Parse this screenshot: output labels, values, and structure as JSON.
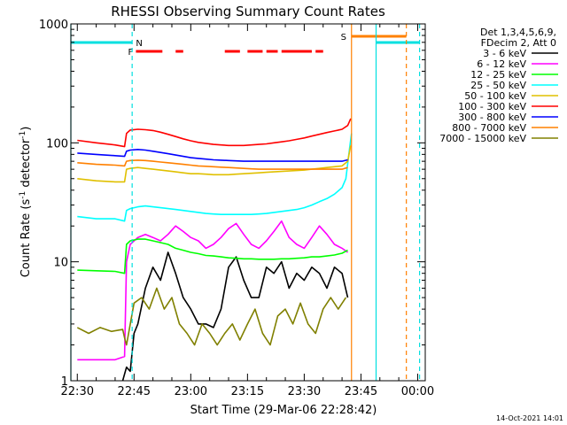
{
  "chart_data": {
    "type": "line",
    "title": "RHESSI Observing Summary Count Rates",
    "xlabel": "Start Time (29-Mar-06 22:28:42)",
    "ylabel_main": "Count Rate (s",
    "ylabel_sup1": "-1",
    "ylabel_mid": " detector",
    "ylabel_sup2": "-1",
    "ylabel_end": ")",
    "yscale": "log",
    "ylim": [
      1,
      1000
    ],
    "xlim_minutes": [
      -1.7,
      92
    ],
    "x_ticks": [
      {
        "m": 0,
        "label": "22:30"
      },
      {
        "m": 15,
        "label": "22:45"
      },
      {
        "m": 30,
        "label": "23:00"
      },
      {
        "m": 45,
        "label": "23:15"
      },
      {
        "m": 60,
        "label": "23:30"
      },
      {
        "m": 75,
        "label": "23:45"
      },
      {
        "m": 90,
        "label": "00:00"
      }
    ],
    "y_ticks": [
      {
        "v": 1,
        "label": "1"
      },
      {
        "v": 10,
        "label": "10"
      },
      {
        "v": 100,
        "label": "100"
      },
      {
        "v": 1000,
        "label": "1000"
      }
    ],
    "legend_header": [
      "Det 1,3,4,5,6,9,",
      "FDecim 2, Att 0"
    ],
    "legend_placement": "right",
    "series": [
      {
        "name": "3 - 6 keV",
        "color": "#000000",
        "x": [
          12,
          13,
          14,
          15,
          16,
          18,
          20,
          22,
          24,
          26,
          28,
          30,
          32,
          34,
          36,
          38,
          40,
          42,
          44,
          46,
          48,
          50,
          52,
          54,
          56,
          58,
          60,
          62,
          64,
          66,
          68,
          70,
          71.5
        ],
        "y": [
          1,
          1.3,
          1.2,
          2.5,
          3,
          6,
          9,
          7,
          12,
          8,
          5,
          4,
          3,
          3,
          2.8,
          4,
          9,
          11,
          7,
          5,
          5,
          9,
          8,
          10,
          6,
          8,
          7,
          9,
          8,
          6,
          9,
          8,
          5
        ]
      },
      {
        "name": "6 - 12 keV",
        "color": "#ff00ff",
        "x": [
          0,
          5,
          10,
          12.5,
          13,
          14,
          16,
          18,
          20,
          22,
          24,
          26,
          28,
          30,
          32,
          34,
          36,
          38,
          40,
          42,
          44,
          46,
          48,
          50,
          52,
          54,
          56,
          58,
          60,
          62,
          64,
          66,
          68,
          70,
          71.5
        ],
        "y": [
          1.5,
          1.5,
          1.5,
          1.6,
          10,
          14,
          16,
          17,
          16,
          15,
          17,
          20,
          18,
          16,
          15,
          13,
          14,
          16,
          19,
          21,
          17,
          14,
          13,
          15,
          18,
          22,
          16,
          14,
          13,
          16,
          20,
          17,
          14,
          13,
          12
        ]
      },
      {
        "name": "12 - 25 keV",
        "color": "#00ff00",
        "x": [
          0,
          5,
          10,
          12.5,
          13,
          14,
          16,
          18,
          20,
          22,
          24,
          26,
          28,
          30,
          32,
          34,
          36,
          38,
          40,
          42,
          44,
          46,
          48,
          50,
          52,
          54,
          56,
          58,
          60,
          62,
          64,
          66,
          68,
          70,
          71.5
        ],
        "y": [
          8.5,
          8.4,
          8.3,
          8.0,
          14,
          15,
          15.5,
          15.5,
          15,
          14.5,
          14,
          13,
          12.5,
          12,
          11.7,
          11.3,
          11.2,
          11,
          10.8,
          10.7,
          10.6,
          10.6,
          10.5,
          10.5,
          10.5,
          10.6,
          10.6,
          10.7,
          10.8,
          11,
          11,
          11.2,
          11.4,
          11.8,
          12.5
        ]
      },
      {
        "name": "25 - 50 keV",
        "color": "#00ffff",
        "x": [
          0,
          5,
          10,
          12.5,
          13,
          14,
          16,
          18,
          20,
          22,
          24,
          26,
          28,
          30,
          32,
          34,
          36,
          38,
          40,
          42,
          44,
          46,
          48,
          50,
          52,
          54,
          56,
          58,
          60,
          62,
          64,
          66,
          68,
          70,
          71,
          72,
          72.5
        ],
        "y": [
          24,
          23,
          23,
          22,
          27,
          28,
          29,
          29.5,
          29,
          28.5,
          28,
          27.5,
          27,
          26.5,
          26,
          25.5,
          25.2,
          25,
          25,
          25,
          25,
          25,
          25.2,
          25.5,
          26,
          26.5,
          27,
          27.5,
          28.5,
          30,
          32,
          34,
          37,
          42,
          50,
          90,
          120
        ]
      },
      {
        "name": "50 - 100 keV",
        "color": "#e0c000",
        "x": [
          0,
          5,
          10,
          12.5,
          13,
          14,
          16,
          18,
          20,
          22,
          24,
          26,
          28,
          30,
          32,
          34,
          36,
          38,
          40,
          42,
          44,
          46,
          48,
          50,
          52,
          54,
          56,
          58,
          60,
          62,
          64,
          66,
          68,
          70,
          71.5,
          72.3
        ],
        "y": [
          50,
          48,
          47,
          47,
          60,
          61,
          62,
          61,
          60,
          59,
          58,
          57,
          56,
          55,
          55,
          54.5,
          54,
          54,
          54,
          54.5,
          55,
          55.5,
          56,
          56.5,
          57,
          57.5,
          58,
          58.5,
          59,
          60,
          61,
          62,
          63,
          64,
          70,
          95
        ]
      },
      {
        "name": "100 - 300 keV",
        "color": "#ff0000",
        "x": [
          0,
          5,
          10,
          12.5,
          13,
          14,
          16,
          18,
          20,
          22,
          24,
          26,
          28,
          30,
          32,
          34,
          36,
          38,
          40,
          42,
          44,
          46,
          48,
          50,
          52,
          54,
          56,
          58,
          60,
          62,
          64,
          66,
          68,
          70,
          71.5,
          72.3
        ],
        "y": [
          105,
          100,
          96,
          93,
          120,
          128,
          130,
          129,
          127,
          123,
          118,
          113,
          108,
          104,
          101,
          99,
          97,
          96,
          95,
          95,
          95,
          96,
          97,
          98,
          100,
          102,
          104,
          107,
          110,
          114,
          118,
          122,
          126,
          130,
          140,
          160
        ]
      },
      {
        "name": "300 - 800 keV",
        "color": "#0000ff",
        "x": [
          0,
          5,
          10,
          12.5,
          13,
          14,
          16,
          18,
          20,
          22,
          24,
          26,
          28,
          30,
          32,
          34,
          36,
          38,
          40,
          42,
          44,
          46,
          48,
          50,
          52,
          54,
          56,
          58,
          60,
          62,
          64,
          66,
          68,
          70,
          71.5
        ],
        "y": [
          82,
          80,
          78,
          77,
          85,
          87,
          88,
          87,
          85,
          83,
          81,
          79,
          77,
          75,
          74,
          73,
          72,
          71.5,
          71,
          70.5,
          70,
          70,
          70,
          70,
          70,
          70,
          70,
          70,
          70,
          70,
          70,
          70,
          70,
          70,
          72
        ]
      },
      {
        "name": "800 - 7000 keV",
        "color": "#ff8000",
        "x": [
          0,
          5,
          10,
          12.5,
          13,
          14,
          16,
          18,
          20,
          22,
          24,
          26,
          28,
          30,
          32,
          34,
          36,
          38,
          40,
          42,
          44,
          46,
          48,
          50,
          52,
          54,
          56,
          58,
          60,
          62,
          64,
          66,
          68,
          70,
          71.5
        ],
        "y": [
          68,
          66,
          65,
          64,
          70,
          71,
          71.5,
          71,
          70,
          69,
          68,
          67,
          66,
          65,
          64,
          63.5,
          63,
          62.5,
          62,
          61.5,
          61,
          60.5,
          60,
          60,
          60,
          60,
          60,
          60,
          60,
          60,
          60,
          60,
          60,
          60,
          62
        ]
      },
      {
        "name": "7000 - 15000 keV",
        "color": "#808000",
        "x": [
          0,
          3,
          6,
          9,
          12,
          12.5,
          13,
          15,
          17,
          19,
          21,
          23,
          25,
          27,
          29,
          31,
          33,
          35,
          37,
          39,
          41,
          43,
          45,
          47,
          49,
          51,
          53,
          55,
          57,
          59,
          61,
          63,
          65,
          67,
          69,
          71
        ],
        "y": [
          2.8,
          2.5,
          2.8,
          2.6,
          2.7,
          2.3,
          2,
          4.5,
          5,
          4,
          6,
          4,
          5,
          3,
          2.5,
          2,
          3,
          2.5,
          2,
          2.5,
          3,
          2.2,
          3,
          4,
          2.5,
          2,
          3.5,
          4,
          3,
          4.5,
          3,
          2.5,
          4,
          5,
          4,
          5
        ]
      }
    ],
    "flag_bars": [
      {
        "label": "N",
        "color": "#00e0e0",
        "segments": [
          [
            -1.7,
            14.5
          ],
          [
            79,
            90.5
          ]
        ]
      },
      {
        "label": "S",
        "color": "#ff8000",
        "segments": [
          [
            72.5,
            87
          ]
        ]
      },
      {
        "label": "F",
        "color": "#ff0000",
        "segments": [
          [
            15.5,
            22.5
          ],
          [
            26,
            28
          ],
          [
            39,
            43
          ],
          [
            45,
            49
          ],
          [
            50,
            53
          ],
          [
            54,
            62
          ],
          [
            63,
            65
          ]
        ]
      }
    ],
    "vertical_lines": [
      {
        "m": -1.7,
        "color": "#00e0e0",
        "style": "solid"
      },
      {
        "m": 14.5,
        "color": "#00e0e0",
        "style": "dashed"
      },
      {
        "m": 72.5,
        "color": "#ff8000",
        "style": "solid"
      },
      {
        "m": 79,
        "color": "#00e0e0",
        "style": "solid"
      },
      {
        "m": 87,
        "color": "#ff8000",
        "style": "dashed"
      },
      {
        "m": 90.5,
        "color": "#00e0e0",
        "style": "dashed"
      }
    ],
    "timestamp": "14-Oct-2021 14:01"
  }
}
